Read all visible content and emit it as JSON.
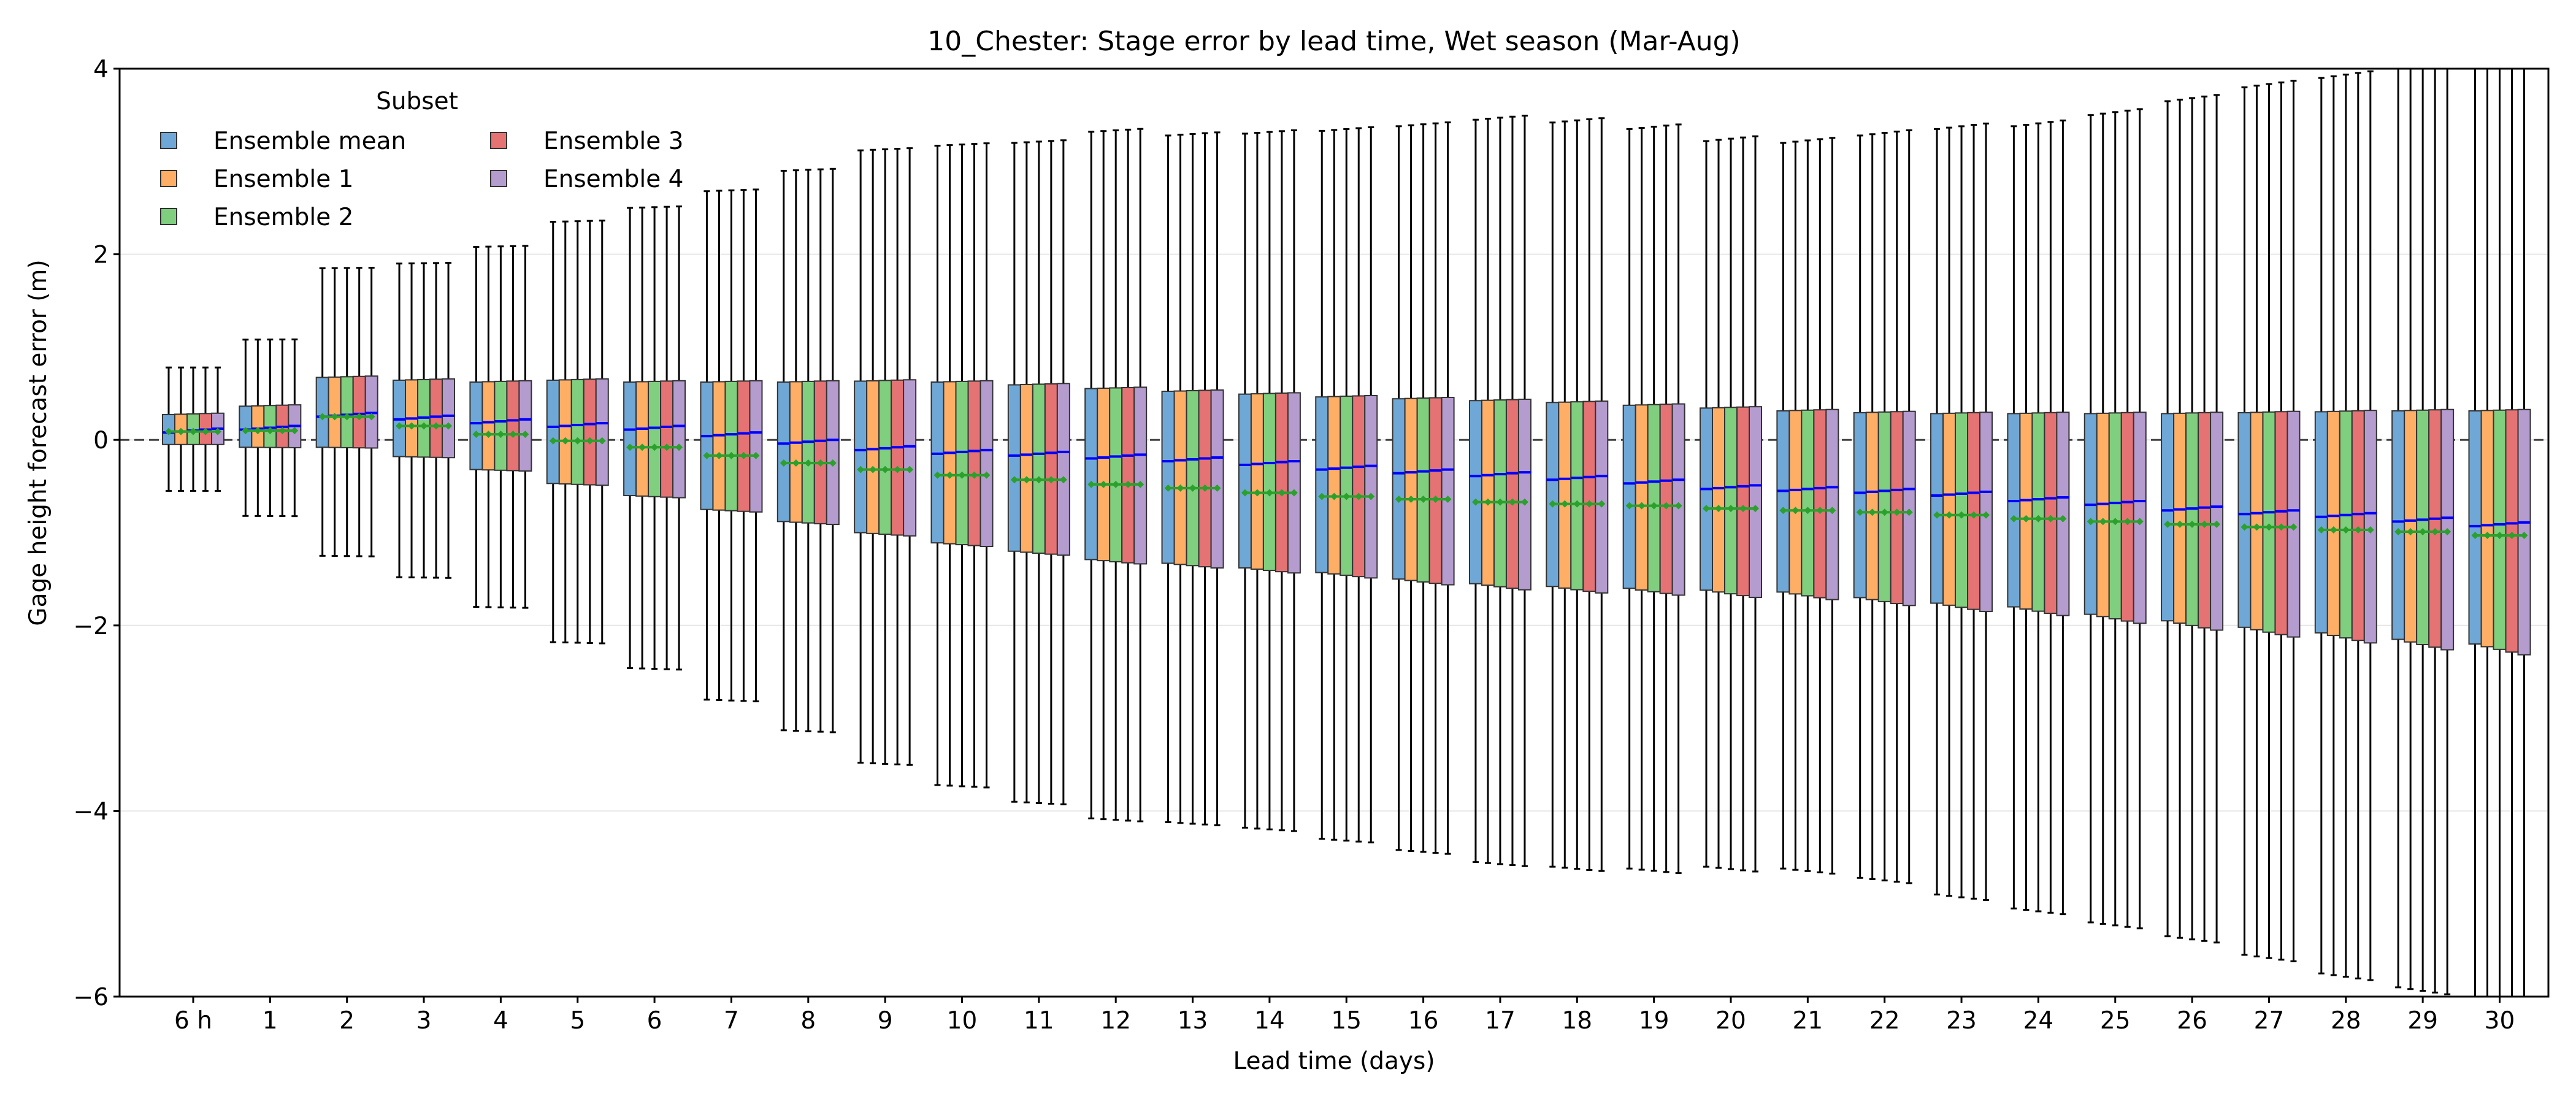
{
  "chart_data": {
    "type": "box",
    "title": "10_Chester: Stage error by lead time, Wet season (Mar-Aug)",
    "xlabel": "Lead time (days)",
    "ylabel": "Gage height forecast error (m)",
    "ylim": [
      -6,
      4
    ],
    "yticks": [
      -6,
      -4,
      -2,
      0,
      2,
      4
    ],
    "ytick_labels": [
      "−6",
      "−4",
      "−2",
      "0",
      "2",
      "4"
    ],
    "grid": "horizontal",
    "reference_line": 0,
    "legend": {
      "title": "Subset",
      "placement": "top-left",
      "columns": 2
    },
    "categories": [
      "6 h",
      "1",
      "2",
      "3",
      "4",
      "5",
      "6",
      "7",
      "8",
      "9",
      "10",
      "11",
      "12",
      "13",
      "14",
      "15",
      "16",
      "17",
      "18",
      "19",
      "20",
      "21",
      "22",
      "23",
      "24",
      "25",
      "26",
      "27",
      "28",
      "29",
      "30"
    ],
    "series_colors": [
      "#6fa8d6",
      "#ffae66",
      "#7fcf7f",
      "#e57373",
      "#b59ccf"
    ],
    "median_color": "#0000ff",
    "mean_color": "#2ca02c",
    "stats_per_lead": [
      {
        "wlo": -0.55,
        "q1": -0.05,
        "med": 0.08,
        "q3": 0.28,
        "whi": 0.78,
        "mean": 0.09
      },
      {
        "wlo": -0.82,
        "q1": -0.08,
        "med": 0.11,
        "q3": 0.37,
        "whi": 1.08,
        "mean": 0.1
      },
      {
        "wlo": -1.25,
        "q1": -0.08,
        "med": 0.25,
        "q3": 0.68,
        "whi": 1.85,
        "mean": 0.25
      },
      {
        "wlo": -1.48,
        "q1": -0.18,
        "med": 0.22,
        "q3": 0.65,
        "whi": 1.9,
        "mean": 0.15
      },
      {
        "wlo": -1.8,
        "q1": -0.32,
        "med": 0.18,
        "q3": 0.63,
        "whi": 2.08,
        "mean": 0.06
      },
      {
        "wlo": -2.18,
        "q1": -0.47,
        "med": 0.14,
        "q3": 0.65,
        "whi": 2.35,
        "mean": -0.01
      },
      {
        "wlo": -2.46,
        "q1": -0.6,
        "med": 0.11,
        "q3": 0.63,
        "whi": 2.5,
        "mean": -0.08
      },
      {
        "wlo": -2.8,
        "q1": -0.75,
        "med": 0.04,
        "q3": 0.63,
        "whi": 2.68,
        "mean": -0.17
      },
      {
        "wlo": -3.13,
        "q1": -0.88,
        "med": -0.04,
        "q3": 0.63,
        "whi": 2.9,
        "mean": -0.25
      },
      {
        "wlo": -3.48,
        "q1": -1.0,
        "med": -0.11,
        "q3": 0.64,
        "whi": 3.12,
        "mean": -0.32
      },
      {
        "wlo": -3.72,
        "q1": -1.11,
        "med": -0.15,
        "q3": 0.63,
        "whi": 3.17,
        "mean": -0.38
      },
      {
        "wlo": -3.9,
        "q1": -1.2,
        "med": -0.17,
        "q3": 0.6,
        "whi": 3.2,
        "mean": -0.43
      },
      {
        "wlo": -4.08,
        "q1": -1.29,
        "med": -0.2,
        "q3": 0.56,
        "whi": 3.32,
        "mean": -0.48
      },
      {
        "wlo": -4.12,
        "q1": -1.33,
        "med": -0.23,
        "q3": 0.53,
        "whi": 3.28,
        "mean": -0.52
      },
      {
        "wlo": -4.18,
        "q1": -1.38,
        "med": -0.27,
        "q3": 0.5,
        "whi": 3.3,
        "mean": -0.57
      },
      {
        "wlo": -4.3,
        "q1": -1.43,
        "med": -0.32,
        "q3": 0.47,
        "whi": 3.33,
        "mean": -0.61
      },
      {
        "wlo": -4.42,
        "q1": -1.5,
        "med": -0.36,
        "q3": 0.45,
        "whi": 3.38,
        "mean": -0.64
      },
      {
        "wlo": -4.55,
        "q1": -1.55,
        "med": -0.39,
        "q3": 0.43,
        "whi": 3.45,
        "mean": -0.67
      },
      {
        "wlo": -4.6,
        "q1": -1.58,
        "med": -0.43,
        "q3": 0.41,
        "whi": 3.42,
        "mean": -0.69
      },
      {
        "wlo": -4.62,
        "q1": -1.6,
        "med": -0.47,
        "q3": 0.38,
        "whi": 3.35,
        "mean": -0.71
      },
      {
        "wlo": -4.6,
        "q1": -1.62,
        "med": -0.53,
        "q3": 0.35,
        "whi": 3.22,
        "mean": -0.74
      },
      {
        "wlo": -4.62,
        "q1": -1.64,
        "med": -0.55,
        "q3": 0.32,
        "whi": 3.2,
        "mean": -0.76
      },
      {
        "wlo": -4.72,
        "q1": -1.7,
        "med": -0.57,
        "q3": 0.3,
        "whi": 3.28,
        "mean": -0.78
      },
      {
        "wlo": -4.9,
        "q1": -1.76,
        "med": -0.6,
        "q3": 0.29,
        "whi": 3.35,
        "mean": -0.81
      },
      {
        "wlo": -5.05,
        "q1": -1.8,
        "med": -0.66,
        "q3": 0.29,
        "whi": 3.38,
        "mean": -0.85
      },
      {
        "wlo": -5.2,
        "q1": -1.88,
        "med": -0.7,
        "q3": 0.29,
        "whi": 3.5,
        "mean": -0.88
      },
      {
        "wlo": -5.35,
        "q1": -1.95,
        "med": -0.76,
        "q3": 0.29,
        "whi": 3.65,
        "mean": -0.91
      },
      {
        "wlo": -5.55,
        "q1": -2.02,
        "med": -0.8,
        "q3": 0.3,
        "whi": 3.8,
        "mean": -0.94
      },
      {
        "wlo": -5.75,
        "q1": -2.08,
        "med": -0.83,
        "q3": 0.31,
        "whi": 3.9,
        "mean": -0.97
      },
      {
        "wlo": -5.9,
        "q1": -2.15,
        "med": -0.88,
        "q3": 0.32,
        "whi": 4.0,
        "mean": -0.99
      },
      {
        "wlo": -6.0,
        "q1": -2.2,
        "med": -0.93,
        "q3": 0.32,
        "whi": 4.0,
        "mean": -1.03
      }
    ],
    "series": [
      {
        "name": "Ensemble mean"
      },
      {
        "name": "Ensemble 1"
      },
      {
        "name": "Ensemble 2"
      },
      {
        "name": "Ensemble 3"
      },
      {
        "name": "Ensemble 4"
      }
    ]
  }
}
